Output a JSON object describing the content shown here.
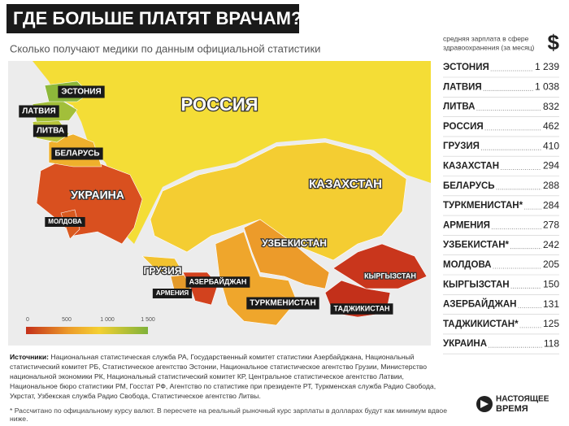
{
  "header": {
    "title": "ГДЕ БОЛЬШЕ ПЛАТЯТ ВРАЧАМ?",
    "subtitle": "Сколько получают медики по данным официальной статистики"
  },
  "map": {
    "labels": [
      "РОССИЯ",
      "ЭСТОНИЯ",
      "ЛАТВИЯ",
      "ЛИТВА",
      "БЕЛАРУСЬ",
      "УКРАИНА",
      "МОЛДОВА",
      "ГРУЗИЯ",
      "АРМЕНИЯ",
      "АЗЕРБАЙДЖАН",
      "КАЗАХСТАН",
      "УЗБЕКИСТАН",
      "ТУРКМЕНИСТАН",
      "КЫРГЫЗСТАН",
      "ТАДЖИКИСТАН"
    ]
  },
  "legend": {
    "ticks": [
      "0",
      "500",
      "1 000",
      "1 500"
    ]
  },
  "ranking": {
    "caption": [
      "средняя зарплата в сфере",
      "здравоохранения (за месяц)"
    ],
    "currency": "$",
    "items": [
      {
        "name": "ЭСТОНИЯ",
        "value": "1 239"
      },
      {
        "name": "ЛАТВИЯ",
        "value": "1 038"
      },
      {
        "name": "ЛИТВА",
        "value": "832"
      },
      {
        "name": "РОССИЯ",
        "value": "462"
      },
      {
        "name": "ГРУЗИЯ",
        "value": "410"
      },
      {
        "name": "КАЗАХСТАН",
        "value": "294"
      },
      {
        "name": "БЕЛАРУСЬ",
        "value": "288"
      },
      {
        "name": "ТУРКМЕНИСТАН*",
        "value": "284"
      },
      {
        "name": "АРМЕНИЯ",
        "value": "278"
      },
      {
        "name": "УЗБЕКИСТАН*",
        "value": "242"
      },
      {
        "name": "МОЛДОВА",
        "value": "205"
      },
      {
        "name": "КЫРГЫЗСТАН",
        "value": "150"
      },
      {
        "name": "АЗЕРБАЙДЖАН",
        "value": "131"
      },
      {
        "name": "ТАДЖИКИСТАН*",
        "value": "125"
      },
      {
        "name": "УКРАИНА",
        "value": "118"
      }
    ]
  },
  "sources": {
    "label": "Источники:",
    "text": "Национальная статистическая служба РА, Государственный комитет статистики Азербайджана, Национальный статистический комитет РБ, Статистическое агентство Эстонии, Национальное статистическое агентство Грузии, Министерство национальной экономики РК, Национальный статистический комитет КР, Центральное статистическое агентство Латвии, Национальное бюро статистики РМ, Госстат РФ, Агентство по статистике при президенте РТ, Туркменская служба Радио Свобода, Укрстат, Узбекская служба Радио Свобода, Статистическое агентство Литвы."
  },
  "footnote": "* Рассчитано по официальному курсу валют. В пересчете на реальный рыночный курс зарплаты в долларах будут как минимум вдвое ниже.",
  "logo": [
    "НАСТОЯЩЕЕ",
    "ВРЕМЯ"
  ]
}
